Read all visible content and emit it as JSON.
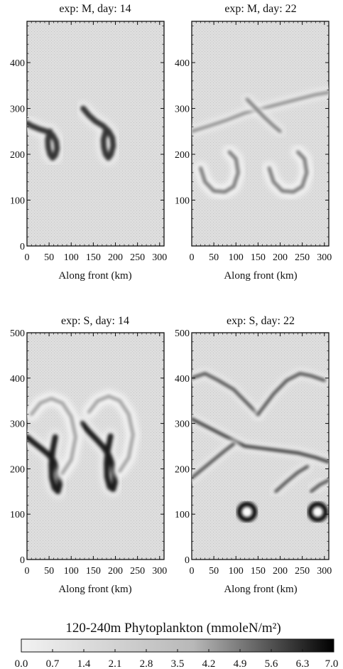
{
  "chart_data": [
    {
      "type": "heatmap",
      "title": "exp: M, day: 14",
      "xlabel": "Along front (km)",
      "ylabel": "",
      "xlim": [
        0,
        310
      ],
      "ylim": [
        0,
        490
      ],
      "xticks": [
        0,
        50,
        100,
        150,
        200,
        250,
        300
      ],
      "yticks": [
        0,
        100,
        200,
        300,
        400
      ],
      "features": [
        {
          "kind": "hook",
          "x": [
            0,
            10,
            28,
            45,
            58,
            66,
            68,
            64,
            58,
            52,
            48,
            47,
            52
          ],
          "y": [
            268,
            262,
            255,
            250,
            242,
            228,
            212,
            198,
            192,
            200,
            215,
            232,
            250
          ],
          "level": 5.6
        },
        {
          "kind": "hook",
          "x": [
            127,
            140,
            155,
            172,
            185,
            193,
            195,
            190,
            184,
            178,
            174,
            173,
            178
          ],
          "y": [
            300,
            285,
            272,
            262,
            250,
            236,
            218,
            200,
            192,
            200,
            215,
            232,
            250
          ],
          "level": 5.6
        }
      ]
    },
    {
      "type": "heatmap",
      "title": "exp: M, day: 22",
      "xlabel": "Along front (km)",
      "ylabel": "",
      "xlim": [
        0,
        310
      ],
      "ylim": [
        0,
        490
      ],
      "xticks": [
        0,
        50,
        100,
        150,
        200,
        250,
        300
      ],
      "yticks": [
        100,
        200,
        300,
        400
      ],
      "features": [
        {
          "kind": "swirl",
          "x": [
            20,
            30,
            50,
            75,
            95,
            105,
            100,
            85
          ],
          "y": [
            170,
            140,
            120,
            118,
            130,
            160,
            190,
            205
          ],
          "level": 3.5
        },
        {
          "kind": "swirl",
          "x": [
            175,
            185,
            205,
            230,
            250,
            260,
            255,
            240
          ],
          "y": [
            170,
            140,
            120,
            118,
            130,
            160,
            190,
            205
          ],
          "level": 3.5
        },
        {
          "kind": "band",
          "x": [
            0,
            40,
            80,
            120,
            160,
            200,
            240,
            280,
            310
          ],
          "y": [
            250,
            262,
            275,
            290,
            300,
            310,
            320,
            330,
            335
          ],
          "level": 2.8
        },
        {
          "kind": "band",
          "x": [
            125,
            145,
            165,
            185,
            200
          ],
          "y": [
            320,
            300,
            280,
            262,
            250
          ],
          "level": 3.5
        }
      ]
    },
    {
      "type": "heatmap",
      "title": "exp: S, day: 14",
      "xlabel": "Along front (km)",
      "ylabel": "",
      "xlim": [
        0,
        310
      ],
      "ylim": [
        0,
        500
      ],
      "xticks": [
        0,
        50,
        100,
        150,
        200,
        250,
        300
      ],
      "yticks": [
        0,
        100,
        200,
        300,
        400,
        500
      ],
      "features": [
        {
          "kind": "hook",
          "x": [
            0,
            15,
            32,
            48,
            60,
            68,
            72,
            74,
            70,
            62,
            56,
            55,
            58,
            64
          ],
          "y": [
            270,
            258,
            245,
            232,
            218,
            200,
            180,
            165,
            150,
            158,
            180,
            210,
            240,
            270
          ],
          "level": 6.3
        },
        {
          "kind": "hook",
          "x": [
            125,
            140,
            157,
            173,
            185,
            193,
            197,
            199,
            195,
            187,
            181,
            180,
            183,
            189
          ],
          "y": [
            300,
            282,
            265,
            248,
            230,
            210,
            190,
            170,
            155,
            160,
            182,
            212,
            242,
            272
          ],
          "level": 6.3
        },
        {
          "kind": "ring",
          "x": [
            10,
            30,
            55,
            80,
            100,
            110,
            100,
            80
          ],
          "y": [
            320,
            345,
            355,
            345,
            315,
            270,
            220,
            190
          ],
          "level": 2.1
        },
        {
          "kind": "ring",
          "x": [
            140,
            160,
            185,
            210,
            230,
            240,
            230,
            210
          ],
          "y": [
            325,
            350,
            360,
            350,
            320,
            275,
            225,
            195
          ],
          "level": 2.1
        }
      ]
    },
    {
      "type": "heatmap",
      "title": "exp: S, day: 22",
      "xlabel": "Along front (km)",
      "ylabel": "",
      "xlim": [
        0,
        310
      ],
      "ylim": [
        0,
        500
      ],
      "xticks": [
        0,
        50,
        100,
        150,
        200,
        250,
        300
      ],
      "yticks": [
        0,
        100,
        200,
        300,
        400,
        500
      ],
      "features": [
        {
          "kind": "band",
          "x": [
            0,
            40,
            80,
            120,
            160,
            200,
            240,
            280,
            310
          ],
          "y": [
            310,
            290,
            270,
            250,
            245,
            240,
            235,
            225,
            215
          ],
          "level": 5.6
        },
        {
          "kind": "band",
          "x": [
            0,
            30,
            60,
            95,
            120,
            150
          ],
          "y": [
            400,
            410,
            395,
            375,
            350,
            320
          ],
          "level": 4.9
        },
        {
          "kind": "band",
          "x": [
            150,
            185,
            215,
            245,
            270,
            300
          ],
          "y": [
            320,
            365,
            395,
            410,
            405,
            395
          ],
          "level": 4.9
        },
        {
          "kind": "band",
          "x": [
            0,
            25,
            50,
            75,
            95
          ],
          "y": [
            180,
            200,
            220,
            240,
            255
          ],
          "level": 4.9
        },
        {
          "kind": "band",
          "x": [
            190,
            215,
            240,
            262
          ],
          "y": [
            150,
            172,
            192,
            205
          ],
          "level": 4.9
        },
        {
          "kind": "band",
          "x": [
            270,
            290,
            310
          ],
          "y": [
            150,
            165,
            175
          ],
          "level": 4.9
        },
        {
          "kind": "eddy",
          "x": [
            125
          ],
          "y": [
            105
          ],
          "level": 7.0
        },
        {
          "kind": "eddy",
          "x": [
            285
          ],
          "y": [
            105
          ],
          "level": 7.0
        }
      ]
    }
  ],
  "colorbar": {
    "title": "120-240m Phytoplankton (mmoleN/m²)",
    "ticks": [
      "0.0",
      "0.7",
      "1.4",
      "2.1",
      "2.8",
      "3.5",
      "4.2",
      "4.9",
      "5.6",
      "6.3",
      "7.0"
    ],
    "min": 0.0,
    "max": 7.0,
    "color_low": "#f2f2f2",
    "color_high": "#000000"
  },
  "colors": {
    "background_field": "#dcdcdc",
    "axis": "#111111"
  }
}
